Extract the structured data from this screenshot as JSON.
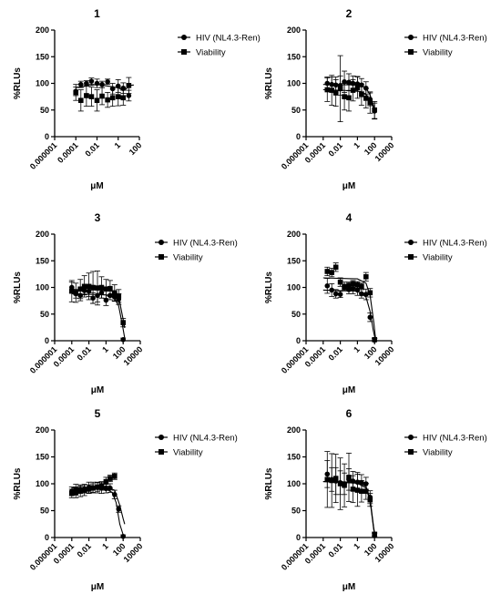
{
  "chart_data": [
    {
      "type": "scatter",
      "title": "1",
      "xlabel": "μM",
      "ylabel": "%RLUs",
      "xscale": "log",
      "xlim": [
        1e-06,
        100
      ],
      "ylim": [
        0,
        200
      ],
      "xticks": [
        "0.000001",
        "0.0001",
        "0.01",
        "1",
        "100"
      ],
      "yticks": [
        "0",
        "50",
        "100",
        "150",
        "200"
      ],
      "legend": "right",
      "series": [
        {
          "name": "HIV (NL4.3-Ren)",
          "marker": "circle",
          "fit": true,
          "x": [
            0.0001,
            0.0003,
            0.001,
            0.003,
            0.01,
            0.03,
            0.1,
            0.3,
            1,
            3,
            10
          ],
          "y": [
            85,
            98,
            100,
            104,
            100,
            98,
            103,
            90,
            95,
            91,
            77
          ],
          "err": [
            8,
            6,
            5,
            6,
            8,
            6,
            5,
            10,
            12,
            10,
            10
          ],
          "curve": [
            [
              0.0001,
              92
            ],
            [
              0.01,
              98
            ],
            [
              1,
              92
            ],
            [
              3,
              86
            ],
            [
              6,
              90
            ],
            [
              12,
              96
            ],
            [
              30,
              97
            ]
          ]
        },
        {
          "name": "Viability",
          "marker": "square",
          "x": [
            0.0001,
            0.0003,
            0.001,
            0.003,
            0.01,
            0.03,
            0.1,
            0.3,
            1,
            3,
            10
          ],
          "y": [
            83,
            68,
            77,
            75,
            68,
            76,
            69,
            73,
            75,
            73,
            96
          ],
          "err": [
            15,
            20,
            20,
            18,
            20,
            16,
            14,
            16,
            17,
            14,
            15
          ]
        }
      ]
    },
    {
      "type": "scatter",
      "title": "2",
      "xlabel": "μM",
      "ylabel": "%RLUs",
      "xscale": "log",
      "xlim": [
        1e-06,
        10000
      ],
      "ylim": [
        0,
        200
      ],
      "xticks": [
        "0.000001",
        "0.0001",
        "0.01",
        "1",
        "100",
        "10000"
      ],
      "yticks": [
        "0",
        "50",
        "100",
        "150",
        "200"
      ],
      "legend": "right",
      "series": [
        {
          "name": "HIV (NL4.3-Ren)",
          "marker": "circle",
          "fit": true,
          "x": [
            0.0003,
            0.001,
            0.003,
            0.01,
            0.03,
            0.1,
            0.3,
            1,
            3,
            10,
            30,
            100
          ],
          "y": [
            100,
            98,
            97,
            96,
            103,
            102,
            100,
            99,
            97,
            91,
            70,
            48
          ],
          "err": [
            12,
            14,
            15,
            18,
            20,
            16,
            14,
            14,
            12,
            12,
            12,
            15
          ],
          "curve": [
            [
              0.0001,
              98
            ],
            [
              1,
              97
            ],
            [
              10,
              92
            ],
            [
              30,
              78
            ],
            [
              100,
              52
            ],
            [
              120,
              48
            ]
          ]
        },
        {
          "name": "Viability",
          "marker": "square",
          "x": [
            0.0003,
            0.001,
            0.003,
            0.01,
            0.03,
            0.1,
            0.3,
            1,
            3,
            10,
            30,
            100
          ],
          "y": [
            88,
            87,
            82,
            90,
            75,
            73,
            87,
            92,
            79,
            72,
            64,
            50
          ],
          "err": [
            22,
            28,
            25,
            62,
            25,
            25,
            20,
            20,
            20,
            18,
            20,
            16
          ],
          "curve": [
            [
              0.0001,
              88
            ],
            [
              1,
              86
            ],
            [
              10,
              80
            ],
            [
              30,
              68
            ],
            [
              100,
              50
            ],
            [
              120,
              47
            ]
          ]
        }
      ]
    },
    {
      "type": "scatter",
      "title": "3",
      "xlabel": "μM",
      "ylabel": "%RLUs",
      "xscale": "log",
      "xlim": [
        1e-06,
        10000
      ],
      "ylim": [
        0,
        200
      ],
      "xticks": [
        "0.000001",
        "0.0001",
        "0.01",
        "1",
        "100",
        "10000"
      ],
      "yticks": [
        "0",
        "50",
        "100",
        "150",
        "200"
      ],
      "legend": "right",
      "series": [
        {
          "name": "HIV (NL4.3-Ren)",
          "marker": "circle",
          "fit": true,
          "x": [
            0.0001,
            0.0003,
            0.001,
            0.003,
            0.01,
            0.03,
            0.1,
            0.3,
            1,
            3,
            10,
            30,
            100
          ],
          "y": [
            100,
            88,
            85,
            94,
            93,
            80,
            85,
            90,
            76,
            85,
            82,
            78,
            2
          ],
          "err": [
            10,
            8,
            10,
            8,
            10,
            10,
            12,
            10,
            10,
            8,
            8,
            10,
            3
          ],
          "curve": [
            [
              0.0001,
              88
            ],
            [
              1,
              86
            ],
            [
              10,
              80
            ],
            [
              30,
              65
            ],
            [
              80,
              30
            ],
            [
              150,
              5
            ]
          ]
        },
        {
          "name": "Viability",
          "marker": "square",
          "x": [
            0.0001,
            0.0003,
            0.001,
            0.003,
            0.01,
            0.03,
            0.1,
            0.3,
            1,
            3,
            10,
            30,
            100
          ],
          "y": [
            93,
            90,
            97,
            102,
            102,
            100,
            99,
            100,
            97,
            98,
            90,
            84,
            34
          ],
          "err": [
            20,
            18,
            18,
            20,
            25,
            30,
            32,
            20,
            18,
            15,
            15,
            12,
            8
          ],
          "curve": [
            [
              0.0001,
              96
            ],
            [
              1,
              95
            ],
            [
              10,
              92
            ],
            [
              30,
              82
            ],
            [
              100,
              40
            ],
            [
              150,
              24
            ]
          ]
        }
      ]
    },
    {
      "type": "scatter",
      "title": "4",
      "xlabel": "μM",
      "ylabel": "%RLUs",
      "xscale": "log",
      "xlim": [
        1e-06,
        10000
      ],
      "ylim": [
        0,
        200
      ],
      "xticks": [
        "0.000001",
        "0.0001",
        "0.01",
        "1",
        "100",
        "10000"
      ],
      "yticks": [
        "0",
        "50",
        "100",
        "150",
        "200"
      ],
      "legend": "right",
      "series": [
        {
          "name": "HIV (NL4.3-Ren)",
          "marker": "circle",
          "fit": true,
          "x": [
            0.0003,
            0.001,
            0.003,
            0.01,
            0.03,
            0.1,
            0.3,
            1,
            3,
            10,
            30,
            100
          ],
          "y": [
            103,
            95,
            88,
            87,
            102,
            96,
            98,
            95,
            88,
            87,
            44,
            1
          ],
          "err": [
            14,
            12,
            8,
            6,
            8,
            8,
            10,
            10,
            8,
            10,
            8,
            3
          ],
          "curve": [
            [
              0.0001,
              95
            ],
            [
              1,
              93
            ],
            [
              10,
              82
            ],
            [
              30,
              55
            ],
            [
              70,
              20
            ],
            [
              120,
              3
            ]
          ]
        },
        {
          "name": "Viability",
          "marker": "square",
          "x": [
            0.0003,
            0.001,
            0.003,
            0.01,
            0.03,
            0.1,
            0.3,
            1,
            3,
            10,
            30,
            100
          ],
          "y": [
            130,
            128,
            138,
            110,
            100,
            104,
            107,
            105,
            102,
            120,
            90,
            2
          ],
          "err": [
            8,
            8,
            8,
            8,
            6,
            6,
            6,
            6,
            6,
            8,
            8,
            3
          ],
          "curve": [
            [
              0.0001,
              118
            ],
            [
              1,
              116
            ],
            [
              10,
              108
            ],
            [
              30,
              85
            ],
            [
              80,
              35
            ],
            [
              130,
              4
            ]
          ]
        }
      ]
    },
    {
      "type": "scatter",
      "title": "5",
      "xlabel": "μM",
      "ylabel": "%RLUs",
      "xscale": "log",
      "xlim": [
        1e-06,
        10000
      ],
      "ylim": [
        0,
        200
      ],
      "xticks": [
        "0.000001",
        "0.0001",
        "0.01",
        "1",
        "100",
        "10000"
      ],
      "yticks": [
        "0",
        "50",
        "100",
        "150",
        "200"
      ],
      "legend": "right",
      "series": [
        {
          "name": "HIV (NL4.3-Ren)",
          "marker": "circle",
          "fit": true,
          "x": [
            0.0001,
            0.0003,
            0.001,
            0.003,
            0.01,
            0.03,
            0.1,
            0.3,
            1,
            3,
            10,
            30,
            100
          ],
          "y": [
            86,
            89,
            90,
            91,
            93,
            93,
            93,
            92,
            91,
            92,
            80,
            53,
            2
          ],
          "err": [
            8,
            10,
            8,
            8,
            10,
            10,
            10,
            10,
            8,
            8,
            8,
            6,
            3
          ],
          "curve": [
            [
              0.0001,
              90
            ],
            [
              1,
              90
            ],
            [
              5,
              84
            ],
            [
              15,
              65
            ],
            [
              40,
              25
            ],
            [
              100,
              5
            ]
          ]
        },
        {
          "name": "Viability",
          "marker": "square",
          "x": [
            0.0001,
            0.0003,
            0.001,
            0.003,
            0.01,
            0.03,
            0.1,
            0.3,
            1,
            3,
            10
          ],
          "y": [
            82,
            84,
            86,
            88,
            90,
            92,
            94,
            96,
            104,
            110,
            114
          ],
          "err": [
            8,
            10,
            10,
            10,
            8,
            8,
            8,
            8,
            8,
            6,
            6
          ],
          "curve": [
            [
              0.0001,
              92
            ],
            [
              1,
              94
            ],
            [
              10,
              88
            ],
            [
              40,
              60
            ],
            [
              100,
              35
            ],
            [
              150,
              25
            ]
          ]
        }
      ]
    },
    {
      "type": "scatter",
      "title": "6",
      "xlabel": "μM",
      "ylabel": "%RLUs",
      "xscale": "log",
      "xlim": [
        1e-06,
        10000
      ],
      "ylim": [
        0,
        200
      ],
      "xticks": [
        "0.000001",
        "0.0001",
        "0.01",
        "1",
        "100",
        "10000"
      ],
      "yticks": [
        "0",
        "50",
        "100",
        "150",
        "200"
      ],
      "legend": "right",
      "series": [
        {
          "name": "HIV (NL4.3-Ren)",
          "marker": "circle",
          "fit": true,
          "x": [
            0.0003,
            0.001,
            0.003,
            0.01,
            0.03,
            0.1,
            0.3,
            1,
            3,
            10,
            30,
            100
          ],
          "y": [
            118,
            108,
            105,
            102,
            100,
            108,
            105,
            103,
            102,
            100,
            75,
            4
          ],
          "err": [
            25,
            22,
            25,
            22,
            20,
            20,
            18,
            18,
            15,
            12,
            12,
            4
          ],
          "curve": [
            [
              0.0001,
              104
            ],
            [
              1,
              103
            ],
            [
              10,
              95
            ],
            [
              30,
              72
            ],
            [
              80,
              18
            ],
            [
              120,
              3
            ]
          ]
        },
        {
          "name": "Viability",
          "marker": "square",
          "x": [
            0.0003,
            0.001,
            0.003,
            0.01,
            0.03,
            0.1,
            0.3,
            1,
            3,
            10,
            30,
            100
          ],
          "y": [
            108,
            106,
            110,
            100,
            97,
            112,
            90,
            88,
            86,
            86,
            70,
            6
          ],
          "err": [
            52,
            50,
            45,
            48,
            40,
            45,
            25,
            30,
            20,
            15,
            12,
            4
          ],
          "curve": [
            [
              0.0001,
              104
            ],
            [
              1,
              101
            ],
            [
              10,
              92
            ],
            [
              30,
              68
            ],
            [
              80,
              14
            ],
            [
              120,
              3
            ]
          ]
        }
      ]
    }
  ]
}
